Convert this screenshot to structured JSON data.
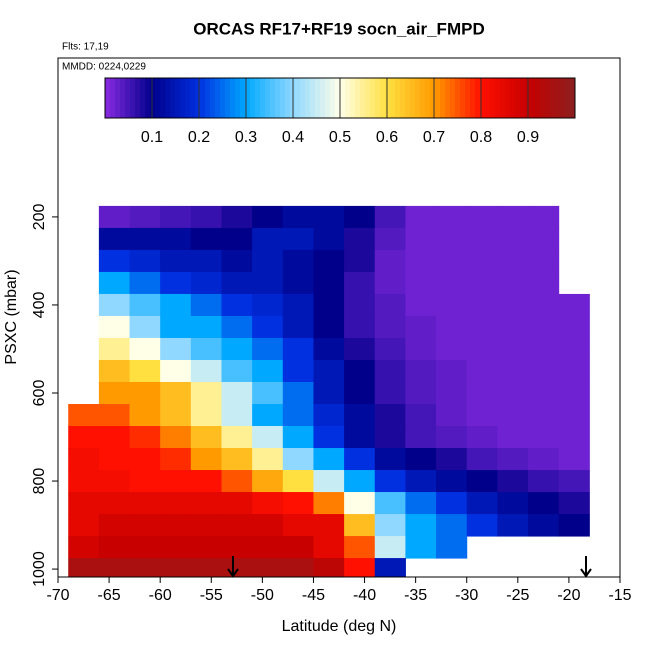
{
  "chart_data": {
    "type": "heatmap",
    "title": "ORCAS RF17+RF19 socn_air_FMPD",
    "annotations": [
      "Flts: 17,19",
      "MMDD: 0224,0229"
    ],
    "xlabel": "Latitude (deg N)",
    "ylabel": "PSXC (mbar)",
    "xlim": [
      -70,
      -15
    ],
    "ylim": [
      1018,
      -161
    ],
    "xticks": [
      -70,
      -65,
      -60,
      -55,
      -50,
      -45,
      -40,
      -35,
      -30,
      -25,
      -20,
      -15
    ],
    "yticks": [
      200,
      400,
      600,
      800,
      1000
    ],
    "x_edges": [
      -69,
      -66,
      -63,
      -60,
      -57,
      -54,
      -51,
      -48,
      -45,
      -42,
      -39,
      -36,
      -33,
      -30,
      -27,
      -24,
      -21,
      -18
    ],
    "y_edges": [
      175,
      225,
      275,
      325,
      375,
      425,
      475,
      525,
      575,
      625,
      675,
      725,
      775,
      825,
      875,
      925,
      975,
      1018
    ],
    "z": [
      [
        null,
        0.03,
        0.04,
        0.05,
        0.06,
        0.08,
        0.1,
        0.12,
        0.12,
        0.1,
        0.05,
        0.02,
        0.02,
        0.02,
        0.02,
        0.02,
        null
      ],
      [
        null,
        0.12,
        0.12,
        0.12,
        0.1,
        0.1,
        0.15,
        0.15,
        0.12,
        0.08,
        0.04,
        0.02,
        0.02,
        0.02,
        0.02,
        0.02,
        null
      ],
      [
        null,
        0.2,
        0.18,
        0.15,
        0.15,
        0.12,
        0.15,
        0.12,
        0.1,
        0.08,
        0.03,
        0.02,
        0.02,
        0.02,
        0.02,
        0.02,
        null
      ],
      [
        null,
        0.3,
        0.25,
        0.2,
        0.18,
        0.15,
        0.15,
        0.12,
        0.1,
        0.06,
        0.03,
        0.02,
        0.02,
        0.02,
        0.02,
        0.02,
        null
      ],
      [
        null,
        0.4,
        0.35,
        0.3,
        0.25,
        0.2,
        0.18,
        0.15,
        0.1,
        0.06,
        0.04,
        0.02,
        0.02,
        0.02,
        0.02,
        0.02,
        0.02
      ],
      [
        null,
        0.5,
        0.4,
        0.3,
        0.3,
        0.25,
        0.2,
        0.15,
        0.1,
        0.06,
        0.04,
        0.03,
        0.02,
        0.02,
        0.02,
        0.02,
        0.02
      ],
      [
        null,
        0.55,
        0.5,
        0.4,
        0.35,
        0.3,
        0.25,
        0.2,
        0.12,
        0.08,
        0.05,
        0.03,
        0.02,
        0.02,
        0.02,
        0.02,
        0.02
      ],
      [
        null,
        0.65,
        0.6,
        0.5,
        0.45,
        0.35,
        0.3,
        0.2,
        0.15,
        0.1,
        0.06,
        0.04,
        0.03,
        0.02,
        0.02,
        0.02,
        0.02
      ],
      [
        null,
        0.7,
        0.7,
        0.65,
        0.55,
        0.45,
        0.35,
        0.25,
        0.15,
        0.1,
        0.06,
        0.04,
        0.03,
        0.02,
        0.02,
        0.02,
        0.02
      ],
      [
        0.75,
        0.75,
        0.7,
        0.65,
        0.55,
        0.45,
        0.3,
        0.25,
        0.18,
        0.12,
        0.08,
        0.05,
        0.03,
        0.02,
        0.02,
        0.02,
        0.02
      ],
      [
        0.8,
        0.8,
        0.78,
        0.72,
        0.65,
        0.55,
        0.45,
        0.3,
        0.2,
        0.12,
        0.08,
        0.05,
        0.04,
        0.03,
        0.02,
        0.02,
        0.02
      ],
      [
        0.82,
        0.8,
        0.8,
        0.78,
        0.7,
        0.65,
        0.55,
        0.4,
        0.3,
        0.2,
        0.12,
        0.1,
        0.08,
        0.05,
        0.04,
        0.03,
        0.02
      ],
      [
        0.82,
        0.82,
        0.8,
        0.8,
        0.8,
        0.75,
        0.68,
        0.6,
        0.45,
        0.3,
        0.2,
        0.15,
        0.12,
        0.1,
        0.08,
        0.06,
        0.05
      ],
      [
        0.85,
        0.85,
        0.85,
        0.85,
        0.85,
        0.85,
        0.82,
        0.8,
        0.72,
        0.5,
        0.35,
        0.25,
        0.2,
        0.15,
        0.12,
        0.1,
        0.08
      ],
      [
        0.85,
        0.88,
        0.88,
        0.88,
        0.88,
        0.88,
        0.88,
        0.85,
        0.85,
        0.65,
        0.4,
        0.3,
        0.25,
        0.2,
        0.15,
        0.12,
        0.1
      ],
      [
        0.88,
        0.9,
        0.9,
        0.9,
        0.9,
        0.9,
        0.9,
        0.9,
        0.85,
        0.75,
        0.45,
        0.3,
        0.25,
        null,
        null,
        null,
        null
      ],
      [
        0.95,
        0.95,
        0.95,
        0.95,
        0.95,
        0.95,
        0.95,
        0.95,
        0.92,
        0.8,
        0.15,
        null,
        null,
        null,
        null,
        null,
        null
      ]
    ],
    "colorbar": {
      "lim": [
        0,
        1
      ],
      "ticks": [
        0.1,
        0.2,
        0.3,
        0.4,
        0.5,
        0.6,
        0.7,
        0.8,
        0.9
      ],
      "colors": [
        "#8a2be2",
        "#00008b",
        "#0030e0",
        "#00a8ff",
        "#90d8ff",
        "#ffffe8",
        "#ffe040",
        "#ff9a00",
        "#ff1000",
        "#c80000",
        "#8b2020"
      ]
    }
  }
}
